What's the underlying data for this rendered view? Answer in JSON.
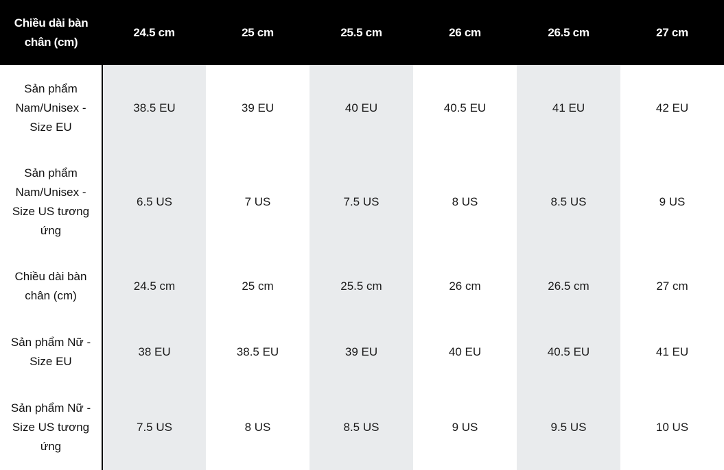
{
  "table": {
    "header": {
      "first": "Chiều dài bàn chân (cm)",
      "columns": [
        "24.5 cm",
        "25 cm",
        "25.5 cm",
        "26 cm",
        "26.5 cm",
        "27 cm"
      ]
    },
    "rows": [
      {
        "label": "Sản phẩm Nam/Unisex - Size EU",
        "cells": [
          "38.5 EU",
          "39 EU",
          "40 EU",
          "40.5 EU",
          "41 EU",
          "42 EU"
        ]
      },
      {
        "label": "Sản phẩm Nam/Unisex - Size US tương ứng",
        "cells": [
          "6.5 US",
          "7 US",
          "7.5 US",
          "8 US",
          "8.5 US",
          "9 US"
        ]
      },
      {
        "label": "Chiều dài bàn chân (cm)",
        "cells": [
          "24.5 cm",
          "25 cm",
          "25.5 cm",
          "26 cm",
          "26.5 cm",
          "27 cm"
        ]
      },
      {
        "label": "Sản phẩm Nữ - Size EU",
        "cells": [
          "38 EU",
          "38.5 EU",
          "39 EU",
          "40 EU",
          "40.5 EU",
          "41 EU"
        ]
      },
      {
        "label": "Sản phẩm Nữ - Size US tương ứng",
        "cells": [
          "7.5 US",
          "8 US",
          "8.5 US",
          "9 US",
          "9.5 US",
          "10 US"
        ]
      }
    ]
  },
  "colors": {
    "header_bg": "#000000",
    "header_text": "#ffffff",
    "shaded_column_bg": "#e9ebed",
    "plain_column_bg": "#ffffff"
  }
}
